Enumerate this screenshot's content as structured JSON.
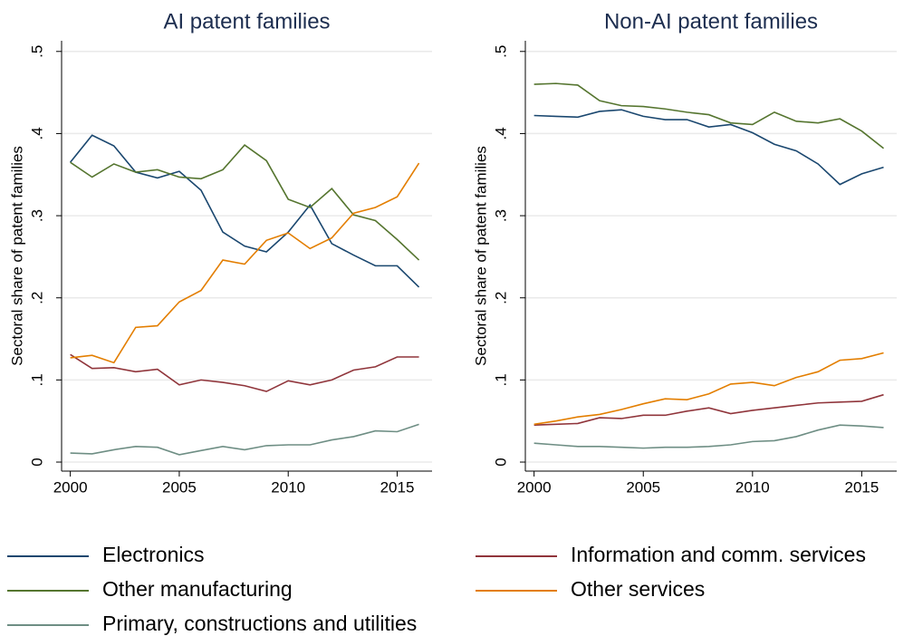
{
  "chart_data": [
    {
      "type": "line",
      "title": "AI patent families",
      "y_label": "Sectoral share of patent families",
      "x": [
        2000,
        2001,
        2002,
        2003,
        2004,
        2005,
        2006,
        2007,
        2008,
        2009,
        2010,
        2011,
        2012,
        2013,
        2014,
        2015,
        2016
      ],
      "xlim": [
        1999.6,
        2016.6
      ],
      "xticks": [
        2000,
        2005,
        2010,
        2015
      ],
      "ylim": [
        -0.011,
        0.513
      ],
      "yticks": [
        0,
        {
          "value": 0.1,
          "label": ".1"
        },
        {
          "value": 0.2,
          "label": ".2"
        },
        {
          "value": 0.3,
          "label": ".3"
        },
        {
          "value": 0.4,
          "label": ".4"
        },
        {
          "value": 0.5,
          "label": ".5"
        }
      ],
      "grid": true,
      "series": [
        {
          "name": "Electronics",
          "color": "#1a476f",
          "values": [
            0.365,
            0.398,
            0.385,
            0.353,
            0.346,
            0.354,
            0.331,
            0.28,
            0.263,
            0.256,
            0.28,
            0.313,
            0.266,
            0.252,
            0.239,
            0.239,
            0.213
          ]
        },
        {
          "name": "Other manufacturing",
          "color": "#55752f",
          "values": [
            0.365,
            0.347,
            0.363,
            0.353,
            0.356,
            0.347,
            0.345,
            0.356,
            0.386,
            0.367,
            0.32,
            0.31,
            0.333,
            0.301,
            0.294,
            0.271,
            0.246
          ]
        },
        {
          "name": "Primary, constructions and utilities",
          "color": "#6e8e84",
          "values": [
            0.011,
            0.01,
            0.015,
            0.019,
            0.018,
            0.009,
            0.014,
            0.019,
            0.015,
            0.02,
            0.021,
            0.021,
            0.027,
            0.031,
            0.038,
            0.037,
            0.046
          ]
        },
        {
          "name": "Information and comm. services",
          "color": "#90353b",
          "values": [
            0.131,
            0.114,
            0.115,
            0.11,
            0.113,
            0.094,
            0.1,
            0.097,
            0.093,
            0.086,
            0.099,
            0.094,
            0.1,
            0.112,
            0.116,
            0.128,
            0.128
          ]
        },
        {
          "name": "Other services",
          "color": "#e37e00",
          "values": [
            0.127,
            0.13,
            0.121,
            0.164,
            0.166,
            0.195,
            0.209,
            0.246,
            0.241,
            0.27,
            0.279,
            0.26,
            0.273,
            0.303,
            0.31,
            0.323,
            0.364
          ]
        }
      ]
    },
    {
      "type": "line",
      "title": "Non-AI patent families",
      "y_label": "Sectoral share of patent families",
      "x": [
        2000,
        2001,
        2002,
        2003,
        2004,
        2005,
        2006,
        2007,
        2008,
        2009,
        2010,
        2011,
        2012,
        2013,
        2014,
        2015,
        2016
      ],
      "xlim": [
        1999.6,
        2016.6
      ],
      "xticks": [
        2000,
        2005,
        2010,
        2015
      ],
      "ylim": [
        -0.011,
        0.513
      ],
      "yticks": [
        0,
        {
          "value": 0.1,
          "label": ".1"
        },
        {
          "value": 0.2,
          "label": ".2"
        },
        {
          "value": 0.3,
          "label": ".3"
        },
        {
          "value": 0.4,
          "label": ".4"
        },
        {
          "value": 0.5,
          "label": ".5"
        }
      ],
      "grid": true,
      "series": [
        {
          "color": "#1a476f",
          "values": [
            0.422,
            0.421,
            0.42,
            0.427,
            0.429,
            0.421,
            0.417,
            0.417,
            0.408,
            0.411,
            0.401,
            0.387,
            0.379,
            0.363,
            0.338,
            0.351,
            0.359
          ]
        },
        {
          "color": "#55752f",
          "values": [
            0.46,
            0.461,
            0.459,
            0.44,
            0.434,
            0.433,
            0.43,
            0.426,
            0.423,
            0.413,
            0.411,
            0.426,
            0.415,
            0.413,
            0.418,
            0.403,
            0.382
          ]
        },
        {
          "color": "#6e8e84",
          "values": [
            0.023,
            0.021,
            0.019,
            0.019,
            0.018,
            0.017,
            0.018,
            0.018,
            0.019,
            0.021,
            0.025,
            0.026,
            0.031,
            0.039,
            0.045,
            0.044,
            0.042
          ]
        },
        {
          "color": "#90353b",
          "values": [
            0.045,
            0.046,
            0.047,
            0.054,
            0.053,
            0.057,
            0.057,
            0.062,
            0.066,
            0.059,
            0.063,
            0.066,
            0.069,
            0.072,
            0.073,
            0.074,
            0.082
          ]
        },
        {
          "color": "#e37e00",
          "values": [
            0.046,
            0.05,
            0.055,
            0.058,
            0.064,
            0.071,
            0.077,
            0.076,
            0.083,
            0.095,
            0.097,
            0.093,
            0.103,
            0.11,
            0.124,
            0.126,
            0.133
          ]
        }
      ]
    }
  ]
}
